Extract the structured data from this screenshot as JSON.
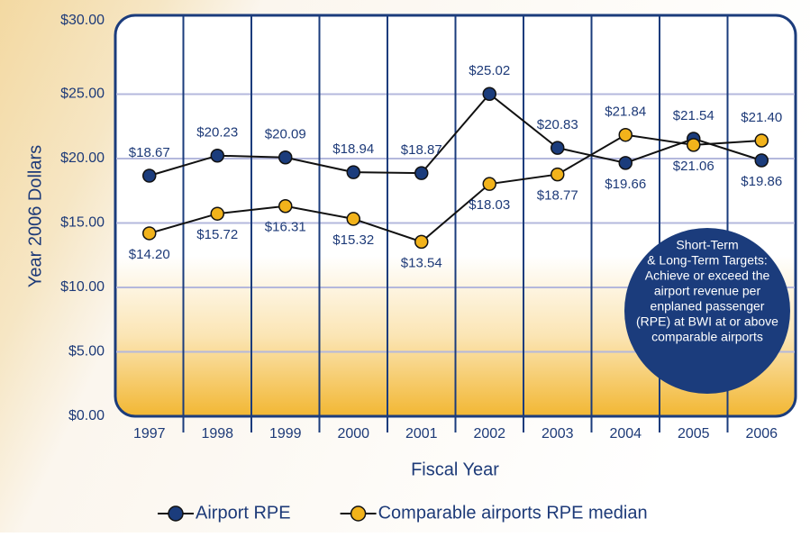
{
  "chart_data": {
    "type": "line",
    "y_label": "Year 2006 Dollars",
    "x_label": "Fiscal Year",
    "categories": [
      "1997",
      "1998",
      "1999",
      "2000",
      "2001",
      "2002",
      "2003",
      "2004",
      "2005",
      "2006"
    ],
    "series": [
      {
        "name": "Airport RPE",
        "color": "#1b3c7c",
        "values": [
          18.67,
          20.23,
          20.09,
          18.94,
          18.87,
          25.02,
          20.83,
          19.66,
          21.54,
          19.86
        ],
        "value_labels": [
          "$18.67",
          "$20.23",
          "$20.09",
          "$18.94",
          "$18.87",
          "$25.02",
          "$20.83",
          "$19.66",
          "$21.54",
          "$19.86"
        ]
      },
      {
        "name": "Comparable airports RPE median",
        "color": "#f2b31b",
        "values": [
          14.2,
          15.72,
          16.31,
          15.32,
          13.54,
          18.03,
          18.77,
          21.84,
          21.06,
          21.4
        ],
        "value_labels": [
          "$14.20",
          "$15.72",
          "$16.31",
          "$15.32",
          "$13.54",
          "$18.03",
          "$18.77",
          "$21.84",
          "$21.06",
          "$21.40"
        ]
      }
    ],
    "ylim": [
      0,
      30
    ],
    "yticks": [
      {
        "value": 0,
        "label": "$0.00"
      },
      {
        "value": 5,
        "label": "$5.00"
      },
      {
        "value": 10,
        "label": "$10.00"
      },
      {
        "value": 15,
        "label": "$15.00"
      },
      {
        "value": 20,
        "label": "$20.00"
      },
      {
        "value": 25,
        "label": "$25.00"
      },
      {
        "value": 30,
        "label": "$30.00"
      }
    ],
    "grid": true,
    "legend": "bottom",
    "annotation": [
      "Short-Term",
      "& Long-Term Targets:",
      "Achieve or exceed the",
      "airport revenue per",
      "enplaned passenger",
      "(RPE) at BWI at or above",
      "comparable airports"
    ]
  }
}
